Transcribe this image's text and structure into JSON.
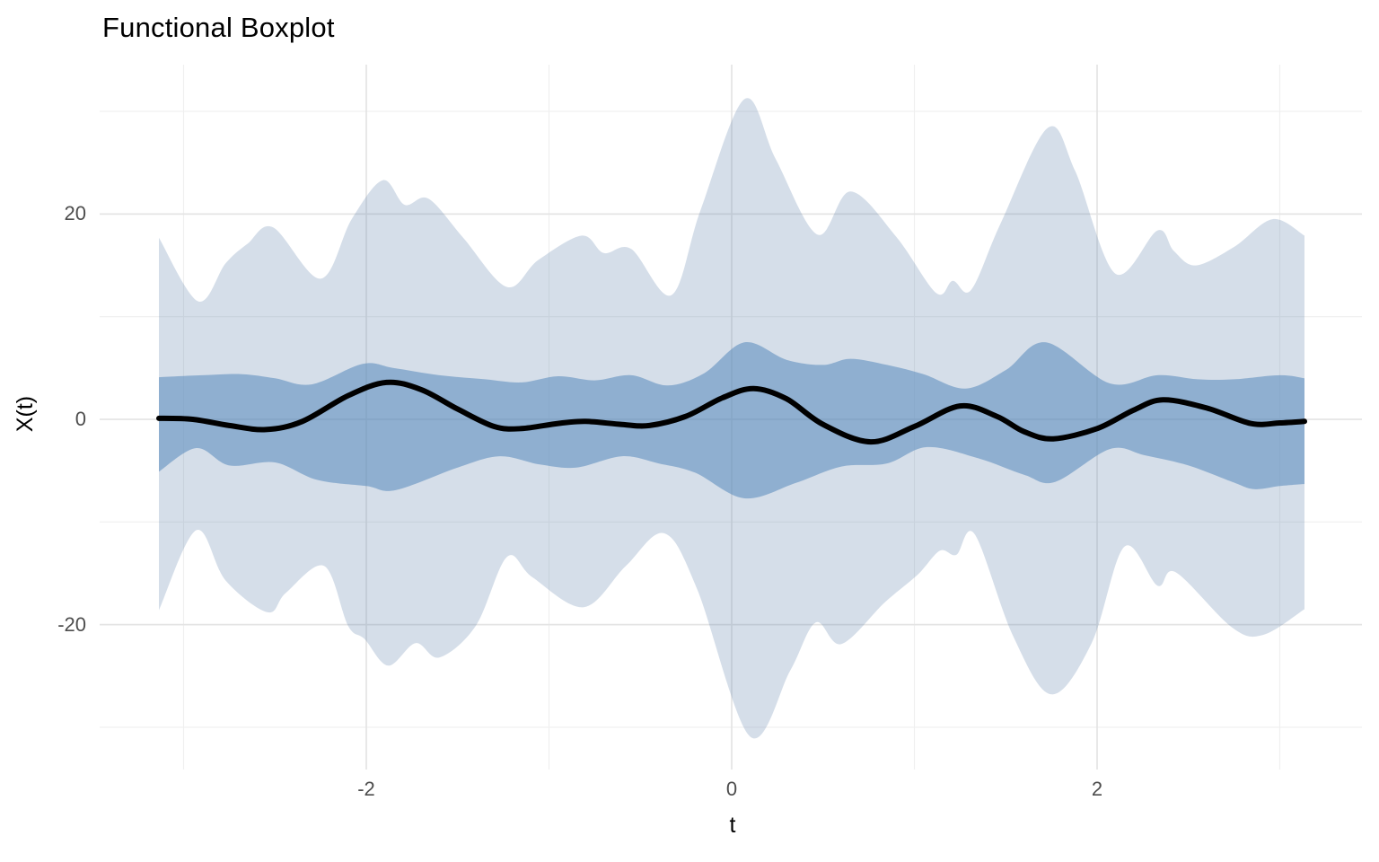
{
  "page": {
    "background": "#FFFFFF"
  },
  "chart_data": {
    "type": "area",
    "variant": "functional-boxplot",
    "title": "Functional Boxplot",
    "xlabel": "t",
    "ylabel": "X(t)",
    "grid": "on",
    "legend": "none",
    "x_axis": {
      "tick_labels": [
        "-2",
        "0",
        "2"
      ],
      "tick_values": [
        -2,
        0,
        2
      ],
      "minor_tick_values": [
        -3,
        -1,
        1,
        3
      ],
      "range": [
        -3.46,
        3.45
      ]
    },
    "y_axis": {
      "tick_labels": [
        "20",
        "0",
        "-20"
      ],
      "tick_values": [
        20,
        0,
        -20
      ],
      "minor_tick_values": [
        30,
        10,
        -10,
        -30
      ],
      "range": [
        -34.1,
        34.6
      ]
    },
    "colors": {
      "outer_band": "#D5DEE9",
      "outer_band_rgba": "rgba(105,137,176,0.28)",
      "inner_band": "#8FAFD0",
      "inner_band_rgba": "rgba(86,137,188,0.55)",
      "median_line": "#000000",
      "grid_major": "#E4E4E4",
      "grid_minor": "#EFEFEF",
      "tick_text": "#4D4D4D",
      "title_text": "#000000"
    },
    "t_domain": [
      -3.135,
      3.135
    ],
    "series": [
      {
        "name": "envelope-upper",
        "role": "outer-band-upper-boundary",
        "points": [
          [
            -3.135,
            17.7
          ],
          [
            -2.92,
            11.5
          ],
          [
            -2.77,
            15.2
          ],
          [
            -2.65,
            17.1
          ],
          [
            -2.51,
            18.7
          ],
          [
            -2.25,
            13.7
          ],
          [
            -2.08,
            19.5
          ],
          [
            -1.91,
            23.3
          ],
          [
            -1.79,
            20.9
          ],
          [
            -1.66,
            21.5
          ],
          [
            -1.47,
            17.7
          ],
          [
            -1.23,
            12.9
          ],
          [
            -1.06,
            15.5
          ],
          [
            -0.82,
            17.9
          ],
          [
            -0.7,
            16.2
          ],
          [
            -0.55,
            16.6
          ],
          [
            -0.33,
            12.1
          ],
          [
            -0.17,
            20.4
          ],
          [
            0.07,
            31.2
          ],
          [
            0.24,
            25.4
          ],
          [
            0.47,
            18.0
          ],
          [
            0.65,
            22.2
          ],
          [
            0.9,
            17.8
          ],
          [
            1.12,
            12.3
          ],
          [
            1.21,
            13.5
          ],
          [
            1.31,
            12.6
          ],
          [
            1.47,
            19.0
          ],
          [
            1.73,
            28.4
          ],
          [
            1.88,
            24.2
          ],
          [
            2.1,
            14.2
          ],
          [
            2.33,
            18.4
          ],
          [
            2.42,
            16.4
          ],
          [
            2.54,
            15.0
          ],
          [
            2.75,
            16.8
          ],
          [
            2.96,
            19.5
          ],
          [
            3.135,
            17.9
          ]
        ]
      },
      {
        "name": "envelope-lower",
        "role": "outer-band-lower-boundary",
        "points": [
          [
            -3.135,
            -18.6
          ],
          [
            -2.93,
            -10.8
          ],
          [
            -2.77,
            -15.7
          ],
          [
            -2.54,
            -18.8
          ],
          [
            -2.44,
            -16.9
          ],
          [
            -2.23,
            -14.3
          ],
          [
            -2.1,
            -20.1
          ],
          [
            -2.01,
            -21.4
          ],
          [
            -1.88,
            -24.0
          ],
          [
            -1.73,
            -21.8
          ],
          [
            -1.6,
            -23.2
          ],
          [
            -1.4,
            -20.1
          ],
          [
            -1.23,
            -13.4
          ],
          [
            -1.09,
            -15.4
          ],
          [
            -0.81,
            -18.3
          ],
          [
            -0.58,
            -14.3
          ],
          [
            -0.37,
            -11.1
          ],
          [
            -0.19,
            -16.5
          ],
          [
            0.1,
            -30.9
          ],
          [
            0.32,
            -24.5
          ],
          [
            0.46,
            -19.8
          ],
          [
            0.6,
            -21.9
          ],
          [
            0.84,
            -17.8
          ],
          [
            1.02,
            -15.1
          ],
          [
            1.14,
            -12.8
          ],
          [
            1.23,
            -13.2
          ],
          [
            1.33,
            -11.2
          ],
          [
            1.54,
            -21.1
          ],
          [
            1.75,
            -26.8
          ],
          [
            1.97,
            -21.8
          ],
          [
            2.15,
            -12.4
          ],
          [
            2.33,
            -16.2
          ],
          [
            2.43,
            -14.9
          ],
          [
            2.74,
            -20.3
          ],
          [
            2.91,
            -21.0
          ],
          [
            3.135,
            -18.5
          ]
        ]
      },
      {
        "name": "central-region-upper",
        "role": "inner-band-upper-boundary",
        "points": [
          [
            -3.135,
            4.1
          ],
          [
            -2.9,
            4.3
          ],
          [
            -2.68,
            4.4
          ],
          [
            -2.5,
            4.0
          ],
          [
            -2.3,
            3.4
          ],
          [
            -2.02,
            5.4
          ],
          [
            -1.85,
            5.0
          ],
          [
            -1.6,
            4.3
          ],
          [
            -1.35,
            3.9
          ],
          [
            -1.15,
            3.6
          ],
          [
            -0.95,
            4.2
          ],
          [
            -0.75,
            3.8
          ],
          [
            -0.55,
            4.3
          ],
          [
            -0.35,
            3.3
          ],
          [
            -0.15,
            4.5
          ],
          [
            0.07,
            7.5
          ],
          [
            0.3,
            5.8
          ],
          [
            0.5,
            5.3
          ],
          [
            0.65,
            5.9
          ],
          [
            0.85,
            5.3
          ],
          [
            1.05,
            4.4
          ],
          [
            1.28,
            3.0
          ],
          [
            1.5,
            4.8
          ],
          [
            1.72,
            7.5
          ],
          [
            2.07,
            3.5
          ],
          [
            2.33,
            4.3
          ],
          [
            2.55,
            3.9
          ],
          [
            2.75,
            3.9
          ],
          [
            3.0,
            4.3
          ],
          [
            3.135,
            4.0
          ]
        ]
      },
      {
        "name": "central-region-lower",
        "role": "inner-band-lower-boundary",
        "points": [
          [
            -3.135,
            -5.1
          ],
          [
            -2.93,
            -2.8
          ],
          [
            -2.75,
            -4.5
          ],
          [
            -2.5,
            -4.2
          ],
          [
            -2.27,
            -5.9
          ],
          [
            -2.0,
            -6.5
          ],
          [
            -1.84,
            -6.9
          ],
          [
            -1.5,
            -4.7
          ],
          [
            -1.27,
            -3.6
          ],
          [
            -1.05,
            -4.4
          ],
          [
            -0.85,
            -4.7
          ],
          [
            -0.6,
            -3.6
          ],
          [
            -0.4,
            -4.3
          ],
          [
            -0.2,
            -5.2
          ],
          [
            0.07,
            -7.7
          ],
          [
            0.35,
            -6.2
          ],
          [
            0.6,
            -4.6
          ],
          [
            0.85,
            -4.3
          ],
          [
            1.07,
            -2.7
          ],
          [
            1.35,
            -3.8
          ],
          [
            1.6,
            -5.4
          ],
          [
            1.77,
            -6.1
          ],
          [
            2.07,
            -2.9
          ],
          [
            2.26,
            -3.5
          ],
          [
            2.5,
            -4.5
          ],
          [
            2.74,
            -6.1
          ],
          [
            2.86,
            -6.8
          ],
          [
            3.0,
            -6.5
          ],
          [
            3.135,
            -6.3
          ]
        ]
      },
      {
        "name": "median",
        "role": "median-curve",
        "points": [
          [
            -3.135,
            0.1
          ],
          [
            -2.95,
            0.0
          ],
          [
            -2.75,
            -0.6
          ],
          [
            -2.55,
            -1.0
          ],
          [
            -2.35,
            -0.2
          ],
          [
            -2.1,
            2.3
          ],
          [
            -1.89,
            3.6
          ],
          [
            -1.7,
            2.9
          ],
          [
            -1.5,
            1.0
          ],
          [
            -1.3,
            -0.7
          ],
          [
            -1.15,
            -0.9
          ],
          [
            -0.95,
            -0.4
          ],
          [
            -0.8,
            -0.2
          ],
          [
            -0.6,
            -0.5
          ],
          [
            -0.45,
            -0.6
          ],
          [
            -0.25,
            0.3
          ],
          [
            -0.05,
            2.1
          ],
          [
            0.12,
            3.0
          ],
          [
            0.3,
            2.0
          ],
          [
            0.5,
            -0.5
          ],
          [
            0.76,
            -2.2
          ],
          [
            1.0,
            -0.7
          ],
          [
            1.25,
            1.3
          ],
          [
            1.45,
            0.3
          ],
          [
            1.6,
            -1.2
          ],
          [
            1.76,
            -1.9
          ],
          [
            2.0,
            -0.9
          ],
          [
            2.2,
            0.9
          ],
          [
            2.36,
            1.9
          ],
          [
            2.6,
            1.1
          ],
          [
            2.84,
            -0.4
          ],
          [
            3.0,
            -0.35
          ],
          [
            3.135,
            -0.2
          ]
        ]
      }
    ]
  }
}
